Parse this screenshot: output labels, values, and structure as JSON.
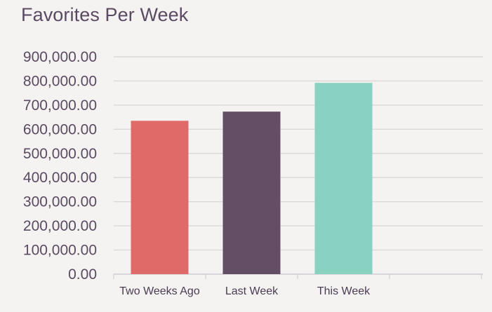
{
  "chart_data": {
    "type": "bar",
    "title": "Favorites Per Week",
    "categories": [
      "Two Weeks Ago",
      "Last Week",
      "This Week"
    ],
    "values": [
      635000,
      673000,
      792000
    ],
    "colors": [
      "#df6b69",
      "#644e66",
      "#89d2c2"
    ],
    "xlabel": "",
    "ylabel": "",
    "ylim": [
      0,
      900000
    ],
    "y_ticks": [
      0,
      100000,
      200000,
      300000,
      400000,
      500000,
      600000,
      700000,
      800000,
      900000
    ],
    "y_tick_labels": [
      "0.00",
      "100,000.00",
      "200,000.00",
      "300,000.00",
      "400,000.00",
      "500,000.00",
      "600,000.00",
      "700,000.00",
      "800,000.00",
      "900,000.00"
    ],
    "grid": true,
    "legend": "none"
  },
  "colors": {
    "background": "#f4f3f2",
    "gridline": "#d9d7d8",
    "axis": "#cfcdcf",
    "text": "#5a4a62"
  }
}
